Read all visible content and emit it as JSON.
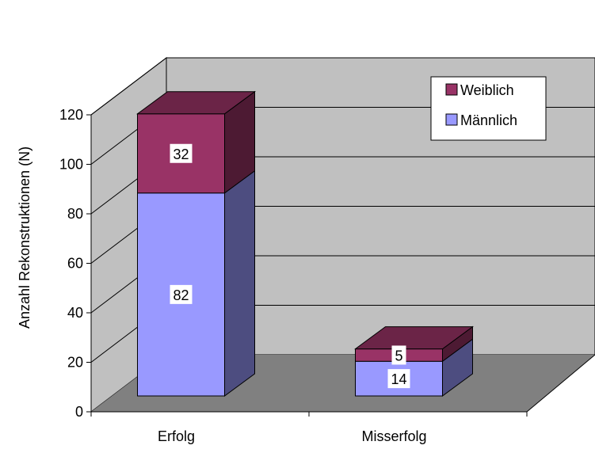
{
  "chart_data": {
    "type": "bar",
    "stacked": true,
    "three_d": true,
    "categories": [
      "Erfolg",
      "Misserfolg"
    ],
    "series": [
      {
        "name": "Männlich",
        "values": [
          82,
          14
        ],
        "color": "#9999ff",
        "side_color": "#4d4d80",
        "top_color": "#6b6bb3"
      },
      {
        "name": "Weiblich",
        "values": [
          32,
          5
        ],
        "color": "#993366",
        "side_color": "#4d1a33",
        "top_color": "#6b2447"
      }
    ],
    "ylabel": "Anzahl Rekonstruktionen (N)",
    "ylim": [
      0,
      120
    ],
    "yticks": [
      0,
      20,
      40,
      60,
      80,
      100,
      120
    ],
    "grid": true,
    "legend_position": "top-right",
    "legend_order": [
      "Weiblich",
      "Männlich"
    ],
    "colors": {
      "back_wall": "#c0c0c0",
      "side_wall": "#c0c0c0",
      "floor": "#808080",
      "data_label_bg": "#ffffff"
    }
  }
}
